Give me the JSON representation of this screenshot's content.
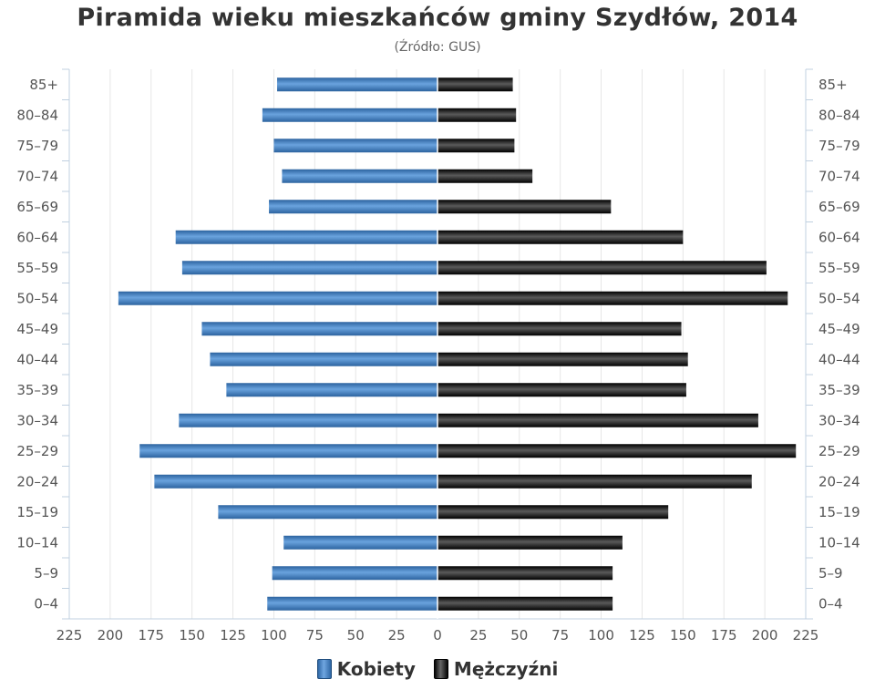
{
  "chart_data": {
    "type": "bar",
    "title": "Piramida wieku mieszkańców gminy Szydłów, 2014",
    "subtitle": "(Źródło: GUS)",
    "orientation": "horizontal-population-pyramid",
    "categories": [
      "85+",
      "80–84",
      "75–79",
      "70–74",
      "65–69",
      "60–64",
      "55–59",
      "50–54",
      "45–49",
      "40–44",
      "35–39",
      "30–34",
      "25–29",
      "20–24",
      "15–19",
      "10–14",
      "5–9",
      "0–4"
    ],
    "series": [
      {
        "name": "Kobiety",
        "color": "#3f7bc1",
        "values": [
          98,
          107,
          100,
          95,
          103,
          160,
          156,
          195,
          144,
          139,
          129,
          158,
          182,
          173,
          134,
          94,
          101,
          104
        ]
      },
      {
        "name": "Mężczyźni",
        "color": "#111111",
        "values": [
          46,
          48,
          47,
          58,
          106,
          150,
          201,
          214,
          149,
          153,
          152,
          196,
          219,
          192,
          141,
          113,
          107,
          107
        ]
      }
    ],
    "xlim": [
      -225,
      225
    ],
    "x_tick_values": [
      -225,
      -200,
      -175,
      -150,
      -125,
      -100,
      -75,
      -50,
      -25,
      0,
      25,
      50,
      75,
      100,
      125,
      150,
      175,
      200,
      225
    ],
    "x_tick_labels": [
      "225",
      "200",
      "175",
      "150",
      "125",
      "100",
      "75",
      "50",
      "25",
      "0",
      "25",
      "50",
      "75",
      "100",
      "125",
      "150",
      "175",
      "200",
      "225"
    ],
    "grid": true,
    "legend_position": "bottom-center"
  },
  "legend": {
    "women": "Kobiety",
    "men": "Mężczyźni"
  }
}
